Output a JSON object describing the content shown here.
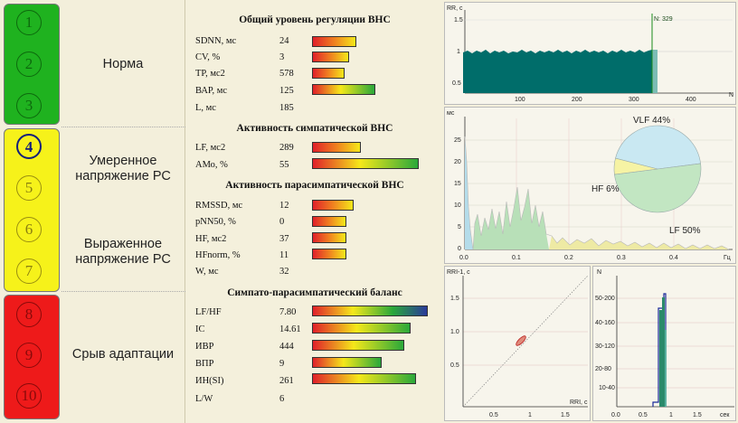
{
  "scale": {
    "levels": [
      "1",
      "2",
      "3",
      "4",
      "5",
      "6",
      "7",
      "8",
      "9",
      "10"
    ],
    "active_level": "4",
    "zones": {
      "norm": "Норма",
      "moderate": "Умеренное напряжение РС",
      "expressed": "Выраженное напряжение РС",
      "failure": "Срыв адаптации"
    },
    "colors": {
      "green": "#1fb21f",
      "yellow": "#f6f21a",
      "red": "#ee1a1a"
    }
  },
  "sections": [
    {
      "title": "Общий уровень регуляции ВНС",
      "rows": [
        {
          "name": "SDNN, мс",
          "value": "24",
          "level": 0.38
        },
        {
          "name": "CV, %",
          "value": "3",
          "level": 0.32
        },
        {
          "name": "TP, мс2",
          "value": "578",
          "level": 0.28
        },
        {
          "name": "ВАР, мс",
          "value": "125",
          "level": 0.55
        },
        {
          "name": "L, мс",
          "value": "185",
          "level": 0
        }
      ]
    },
    {
      "title": "Активность симпатической ВНС",
      "rows": [
        {
          "name": "LF, мс2",
          "value": "289",
          "level": 0.42
        },
        {
          "name": "АМо, %",
          "value": "55",
          "level": 0.92
        }
      ]
    },
    {
      "title": "Активность парасимпатической ВНС",
      "rows": [
        {
          "name": "RMSSD, мс",
          "value": "12",
          "level": 0.36
        },
        {
          "name": "pNN50, %",
          "value": "0",
          "level": 0.3
        },
        {
          "name": "HF, мс2",
          "value": "37",
          "level": 0.3
        },
        {
          "name": "HFnorm, %",
          "value": "11",
          "level": 0.3
        },
        {
          "name": "W, мс",
          "value": "32",
          "level": 0
        }
      ]
    },
    {
      "title": "Симпато-парасимпатический баланс",
      "rows": [
        {
          "name": "LF/HF",
          "value": "7.80",
          "level": 1.0
        },
        {
          "name": "IC",
          "value": "14.61",
          "level": 0.85
        },
        {
          "name": "ИВР",
          "value": "444",
          "level": 0.8
        },
        {
          "name": "ВПР",
          "value": "9",
          "level": 0.6
        },
        {
          "name": "ИН(SI)",
          "value": "261",
          "level": 0.9
        },
        {
          "name": "L/W",
          "value": "6",
          "level": 0
        }
      ]
    }
  ],
  "charts": {
    "rhythm": {
      "ylabel": "RR, с",
      "xlabel": "N",
      "marker": "N: 329",
      "yticks": [
        "1.5",
        "1",
        "0.5"
      ],
      "xticks": [
        "100",
        "200",
        "300",
        "400"
      ],
      "fill_color": "#006d6a"
    },
    "spectrum": {
      "ylabel": "мс",
      "xlabel": "Гц",
      "yticks": [
        "25",
        "20",
        "15",
        "10",
        "5",
        "0"
      ],
      "xticks": [
        "0.0",
        "0.1",
        "0.2",
        "0.3",
        "0.4"
      ],
      "pie_labels": {
        "vlf": "VLF 44%",
        "hf": "HF  6%",
        "lf": "LF 50%"
      },
      "pie": [
        {
          "name": "VLF",
          "value": 44,
          "color": "#c9e8f2"
        },
        {
          "name": "HF",
          "value": 6,
          "color": "#f6f3a4"
        },
        {
          "name": "LF",
          "value": 50,
          "color": "#c2e6c2"
        }
      ]
    },
    "scatter": {
      "ylabel": "RRI-1, с",
      "xlabel": "RRI, с",
      "yticks": [
        "1.5",
        "1.0",
        "0.5"
      ],
      "xticks": [
        "0.5",
        "1",
        "1.5"
      ]
    },
    "histogram": {
      "ylabel": "N",
      "xlabel": "сек",
      "yticks": [
        "50-200",
        "40-160",
        "30-120",
        "20-80",
        "10-40"
      ],
      "xticks": [
        "0.0",
        "0.5",
        "1",
        "1.5"
      ]
    }
  }
}
